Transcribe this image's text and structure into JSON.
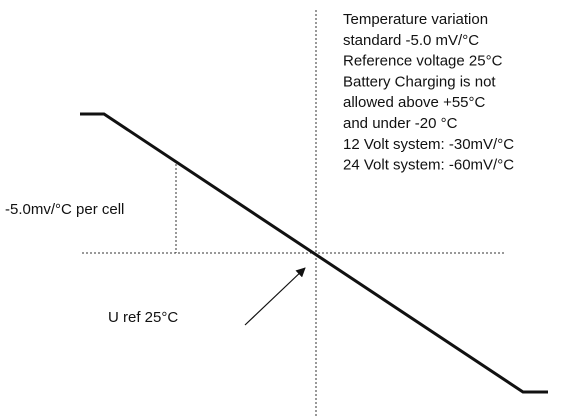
{
  "notes": [
    "Temperature variation",
    "standard -5.0 mV/°C",
    "Reference voltage 25°C",
    "Battery Charging is not",
    "allowed above +55°C",
    "and under -20 °C",
    "12 Volt system: -30mV/°C",
    "24 Volt system: -60mV/°C"
  ],
  "labels": {
    "slope": "-5.0mv/°C per cell",
    "uref": "U ref 25°C"
  }
}
